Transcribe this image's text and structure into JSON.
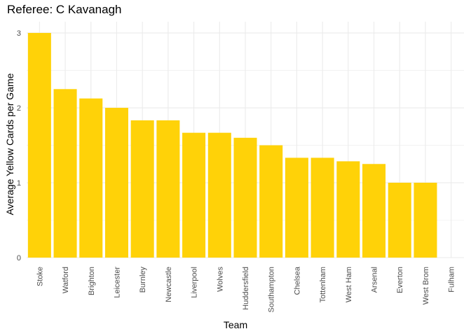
{
  "chart_data": {
    "type": "bar",
    "title": "Referee: C Kavanagh",
    "xlabel": "Team",
    "ylabel": "Average Yellow Cards per Game",
    "categories": [
      "Stoke",
      "Watford",
      "Brighton",
      "Leicester",
      "Burnley",
      "Newcastle",
      "Liverpool",
      "Wolves",
      "Huddersfield",
      "Southampton",
      "Chelsea",
      "Tottenham",
      "West Ham",
      "Arsenal",
      "Everton",
      "West Brom",
      "Fulham"
    ],
    "values": [
      3.0,
      2.25,
      2.125,
      2.0,
      1.833,
      1.833,
      1.667,
      1.667,
      1.6,
      1.5,
      1.333,
      1.333,
      1.286,
      1.25,
      1.0,
      1.0,
      0
    ],
    "ylim": [
      0,
      3.15
    ],
    "yticks": [
      0,
      1,
      2,
      3
    ],
    "grid": true,
    "bar_color": "#FFD208",
    "grid_color": "#EBEBEB"
  }
}
